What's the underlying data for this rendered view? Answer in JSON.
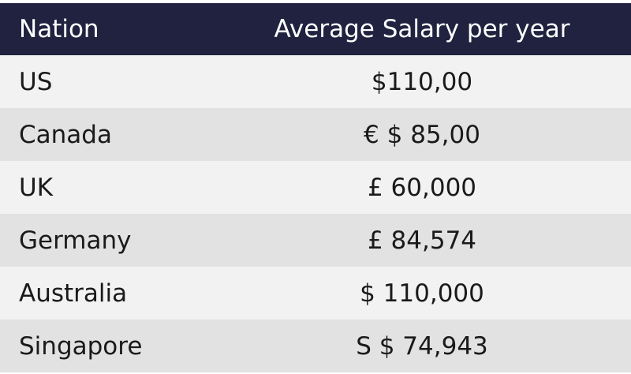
{
  "table": {
    "headers": {
      "nation": "Nation",
      "salary": "Average Salary per year"
    },
    "rows": [
      {
        "nation": "US",
        "salary": "$110,00"
      },
      {
        "nation": "Canada",
        "salary": "€ $ 85,00"
      },
      {
        "nation": "UK",
        "salary": "£ 60,000"
      },
      {
        "nation": "Germany",
        "salary": "£ 84,574"
      },
      {
        "nation": "Australia",
        "salary": "$ 110,000"
      },
      {
        "nation": "Singapore",
        "salary": "S $ 74,943"
      }
    ]
  },
  "colors": {
    "header_bg": "#20223f",
    "row_light": "#f2f2f2",
    "row_dark": "#e2e2e2"
  }
}
